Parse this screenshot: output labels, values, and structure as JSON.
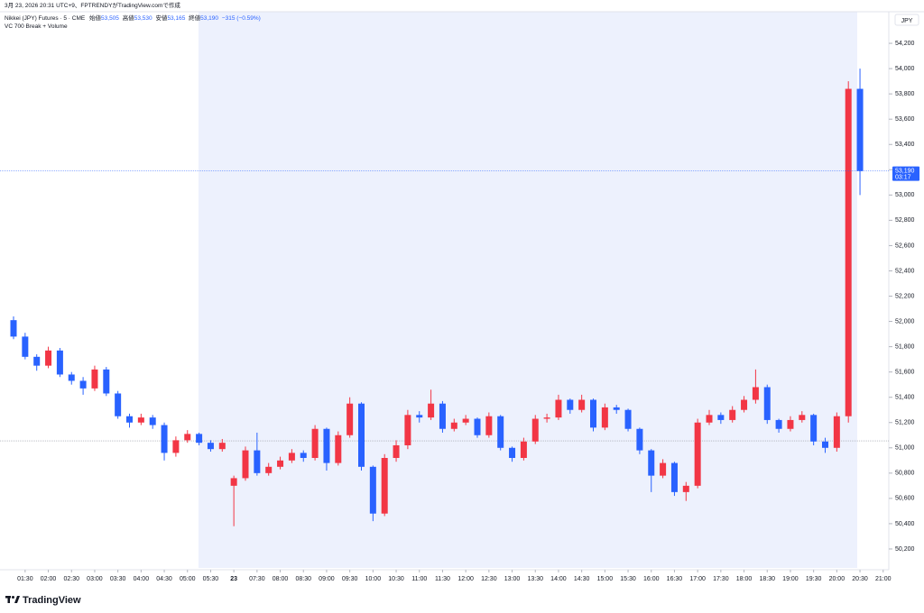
{
  "header": {
    "caption": "3月 23, 2026 20:31 UTC+9、FPTRENDYがTradingView.comで作成",
    "symbol": "Nikkei (JPY) Futures · 5 · CME",
    "ohlc_legend": [
      {
        "label": "始値",
        "value": "53,505"
      },
      {
        "label": "高値",
        "value": "53,530"
      },
      {
        "label": "安値",
        "value": "53,165"
      },
      {
        "label": "終値",
        "value": "53,190"
      }
    ],
    "change": "−315 (−0.59%)",
    "indicator": "VC 700 Break + Volume",
    "currency": "JPY"
  },
  "chart_data": {
    "type": "candlestick",
    "categories": [
      null,
      "01:30",
      null,
      "02:00",
      null,
      "02:30",
      null,
      "03:00",
      null,
      "03:30",
      null,
      "04:00",
      null,
      "04:30",
      null,
      "05:00",
      null,
      "05:30",
      null,
      "23",
      null,
      "07:30",
      null,
      "08:00",
      null,
      "08:30",
      null,
      "09:00",
      null,
      "09:30",
      null,
      "10:00",
      null,
      "10:30",
      null,
      "11:00",
      null,
      "11:30",
      null,
      "12:00",
      null,
      "12:30",
      null,
      "13:00",
      null,
      "13:30",
      null,
      "14:00",
      null,
      "14:30",
      null,
      "15:00",
      null,
      "15:30",
      null,
      "16:00",
      null,
      "16:30",
      null,
      "17:00",
      null,
      "17:30",
      null,
      "18:00",
      null,
      "18:30",
      null,
      "19:00",
      null,
      "19:30",
      null,
      "20:00",
      null,
      "20:30",
      null,
      "21:00"
    ],
    "open": [
      52010,
      51880,
      51720,
      51650,
      51770,
      51580,
      51530,
      51470,
      51620,
      51430,
      51250,
      51200,
      51240,
      51180,
      50960,
      51060,
      51110,
      51040,
      50990,
      50700,
      50760,
      50980,
      50800,
      50850,
      50900,
      50960,
      50920,
      51150,
      50880,
      51100,
      51350,
      50850,
      50480,
      50920,
      51020,
      51260,
      51240,
      51350,
      51150,
      51200,
      51230,
      51100,
      51250,
      51000,
      50920,
      51050,
      51230,
      51240,
      51380,
      51300,
      51380,
      51160,
      51320,
      51300,
      51150,
      50980,
      50780,
      50880,
      50650,
      50700,
      51200,
      51260,
      51220,
      51300,
      51380,
      51480,
      51220,
      51150,
      51220,
      51260,
      51050,
      51000,
      51250,
      53840,
      null,
      null
    ],
    "high": [
      52040,
      51910,
      51740,
      51800,
      51790,
      51600,
      51560,
      51650,
      51640,
      51450,
      51270,
      51270,
      51260,
      51200,
      51090,
      51140,
      51120,
      51060,
      51070,
      50780,
      51010,
      51120,
      50880,
      50930,
      50990,
      50980,
      51180,
      51160,
      51130,
      51400,
      51360,
      50860,
      50950,
      51060,
      51300,
      51290,
      51460,
      51370,
      51230,
      51260,
      51240,
      51280,
      51260,
      51010,
      51080,
      51260,
      51270,
      51420,
      51390,
      51420,
      51390,
      51350,
      51340,
      51310,
      51160,
      50990,
      50910,
      50890,
      50730,
      51230,
      51300,
      51280,
      51330,
      51410,
      51620,
      51500,
      51230,
      51250,
      51290,
      51270,
      51080,
      51280,
      53900,
      54000,
      null,
      null
    ],
    "low": [
      51860,
      51700,
      51610,
      51630,
      51560,
      51500,
      51420,
      51450,
      51410,
      51230,
      51160,
      51180,
      51150,
      50900,
      50930,
      51040,
      51020,
      50970,
      50970,
      50380,
      50740,
      50780,
      50780,
      50830,
      50880,
      50890,
      50900,
      50820,
      50860,
      51080,
      50820,
      50420,
      50460,
      50890,
      50990,
      51200,
      51220,
      51120,
      51130,
      51180,
      51080,
      51080,
      50980,
      50890,
      50900,
      51030,
      51200,
      51220,
      51270,
      51280,
      51130,
      51140,
      51270,
      51130,
      50950,
      50650,
      50760,
      50620,
      50580,
      50680,
      51180,
      51190,
      51200,
      51280,
      51350,
      51190,
      51120,
      51130,
      51200,
      51020,
      50960,
      50970,
      51200,
      53000,
      null,
      null
    ],
    "close": [
      51880,
      51720,
      51650,
      51770,
      51580,
      51530,
      51470,
      51620,
      51430,
      51250,
      51200,
      51240,
      51180,
      50960,
      51060,
      51110,
      51040,
      50990,
      51040,
      50760,
      50980,
      50800,
      50850,
      50900,
      50960,
      50920,
      51150,
      50880,
      51100,
      51350,
      50850,
      50480,
      50920,
      51020,
      51260,
      51240,
      51350,
      51150,
      51200,
      51230,
      51100,
      51250,
      51000,
      50920,
      51050,
      51230,
      51240,
      51380,
      51300,
      51380,
      51160,
      51320,
      51300,
      51150,
      50980,
      50780,
      50880,
      50650,
      50700,
      51200,
      51260,
      51220,
      51300,
      51380,
      51480,
      51220,
      51150,
      51220,
      51260,
      51050,
      51000,
      51250,
      53840,
      53190,
      null,
      null
    ],
    "up_color": "#f23645",
    "down_color": "#2962ff",
    "ylim": [
      50050,
      54450
    ],
    "yticks": [
      {
        "value": 50200,
        "label": "50,200"
      },
      {
        "value": 50400,
        "label": "50,400"
      },
      {
        "value": 50600,
        "label": "50,600"
      },
      {
        "value": 50800,
        "label": "50,800"
      },
      {
        "value": 51000,
        "label": "51,000"
      },
      {
        "value": 51200,
        "label": "51,200"
      },
      {
        "value": 51400,
        "label": "51,400"
      },
      {
        "value": 51600,
        "label": "51,600"
      },
      {
        "value": 51800,
        "label": "51,800"
      },
      {
        "value": 52000,
        "label": "52,000"
      },
      {
        "value": 52200,
        "label": "52,200"
      },
      {
        "value": 52400,
        "label": "52,400"
      },
      {
        "value": 52600,
        "label": "52,600"
      },
      {
        "value": 52800,
        "label": "52,800"
      },
      {
        "value": 53000,
        "label": "53,000"
      },
      {
        "value": 53200,
        "label": "53,200"
      },
      {
        "value": 53400,
        "label": "53,400"
      },
      {
        "value": 53600,
        "label": "53,600"
      },
      {
        "value": 53800,
        "label": "53,800"
      },
      {
        "value": 54000,
        "label": "54,000"
      },
      {
        "value": 54200,
        "label": "54,200"
      }
    ],
    "last_price": {
      "value": 53190,
      "label": "53,190"
    },
    "countdown": "03:17",
    "reference_line": 51055
  },
  "footer": {
    "brand": "TradingView"
  }
}
